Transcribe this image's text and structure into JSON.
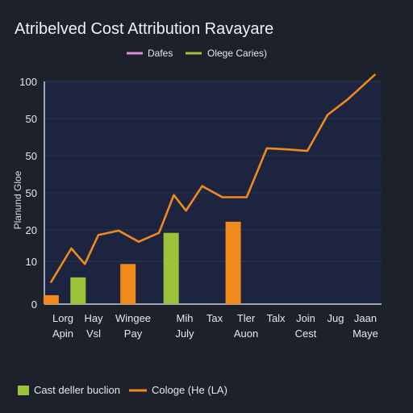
{
  "chart_data": {
    "type": "bar",
    "title": "Atribelved Cost Attribution Ravayare",
    "ylabel": "Planund Gloe",
    "y_ticks": [
      "100",
      "50",
      "50",
      "50",
      "20",
      "10",
      "0"
    ],
    "ylim": [
      0,
      100
    ],
    "grid": true,
    "legend_position": "top-center",
    "legend_top": [
      {
        "label": "Dafes",
        "color": "#e08ce6"
      },
      {
        "label": "Olege Caries)",
        "color": "#9cc43a"
      }
    ],
    "legend_bottom": [
      {
        "label": "Cast deller buclion",
        "color": "#9cc43a"
      },
      {
        "label": "Cologe (He (LA)",
        "color": "#f08a1c"
      }
    ],
    "x_labels": [
      {
        "top": "Lorg",
        "bottom": "Apin"
      },
      {
        "top": "Hay",
        "bottom": "Vsl"
      },
      {
        "top": "Wingee",
        "bottom": "Pay"
      },
      {
        "top": "Mih",
        "bottom": "July"
      },
      {
        "top": "Tax",
        "bottom": ""
      },
      {
        "top": "Tler",
        "bottom": "Auon"
      },
      {
        "top": "Talx",
        "bottom": ""
      },
      {
        "top": "Join",
        "bottom": "Cest"
      },
      {
        "top": "Jug",
        "bottom": ""
      },
      {
        "top": "Jaan",
        "bottom": "Maye"
      }
    ],
    "bars": [
      {
        "x": 0.25,
        "value": 4,
        "color": "#f08a1c"
      },
      {
        "x": 1.25,
        "value": 12,
        "color": "#9cc43a"
      },
      {
        "x": 3.1,
        "value": 18,
        "color": "#f08a1c"
      },
      {
        "x": 4.7,
        "value": 32,
        "color": "#9cc43a"
      },
      {
        "x": 7.0,
        "value": 37,
        "color": "#f08a1c"
      }
    ],
    "line": {
      "color": "#f08a1c",
      "points": [
        [
          0.25,
          10
        ],
        [
          1.0,
          25
        ],
        [
          1.5,
          18
        ],
        [
          2.0,
          31
        ],
        [
          2.75,
          33
        ],
        [
          3.5,
          28
        ],
        [
          4.25,
          32
        ],
        [
          4.8,
          49
        ],
        [
          5.25,
          42
        ],
        [
          5.85,
          53
        ],
        [
          6.6,
          48
        ],
        [
          7.5,
          48
        ],
        [
          8.25,
          70
        ],
        [
          9.0,
          69.5
        ],
        [
          9.75,
          68.8
        ],
        [
          10.5,
          85
        ],
        [
          11.25,
          92
        ],
        [
          12.25,
          103
        ]
      ]
    }
  }
}
